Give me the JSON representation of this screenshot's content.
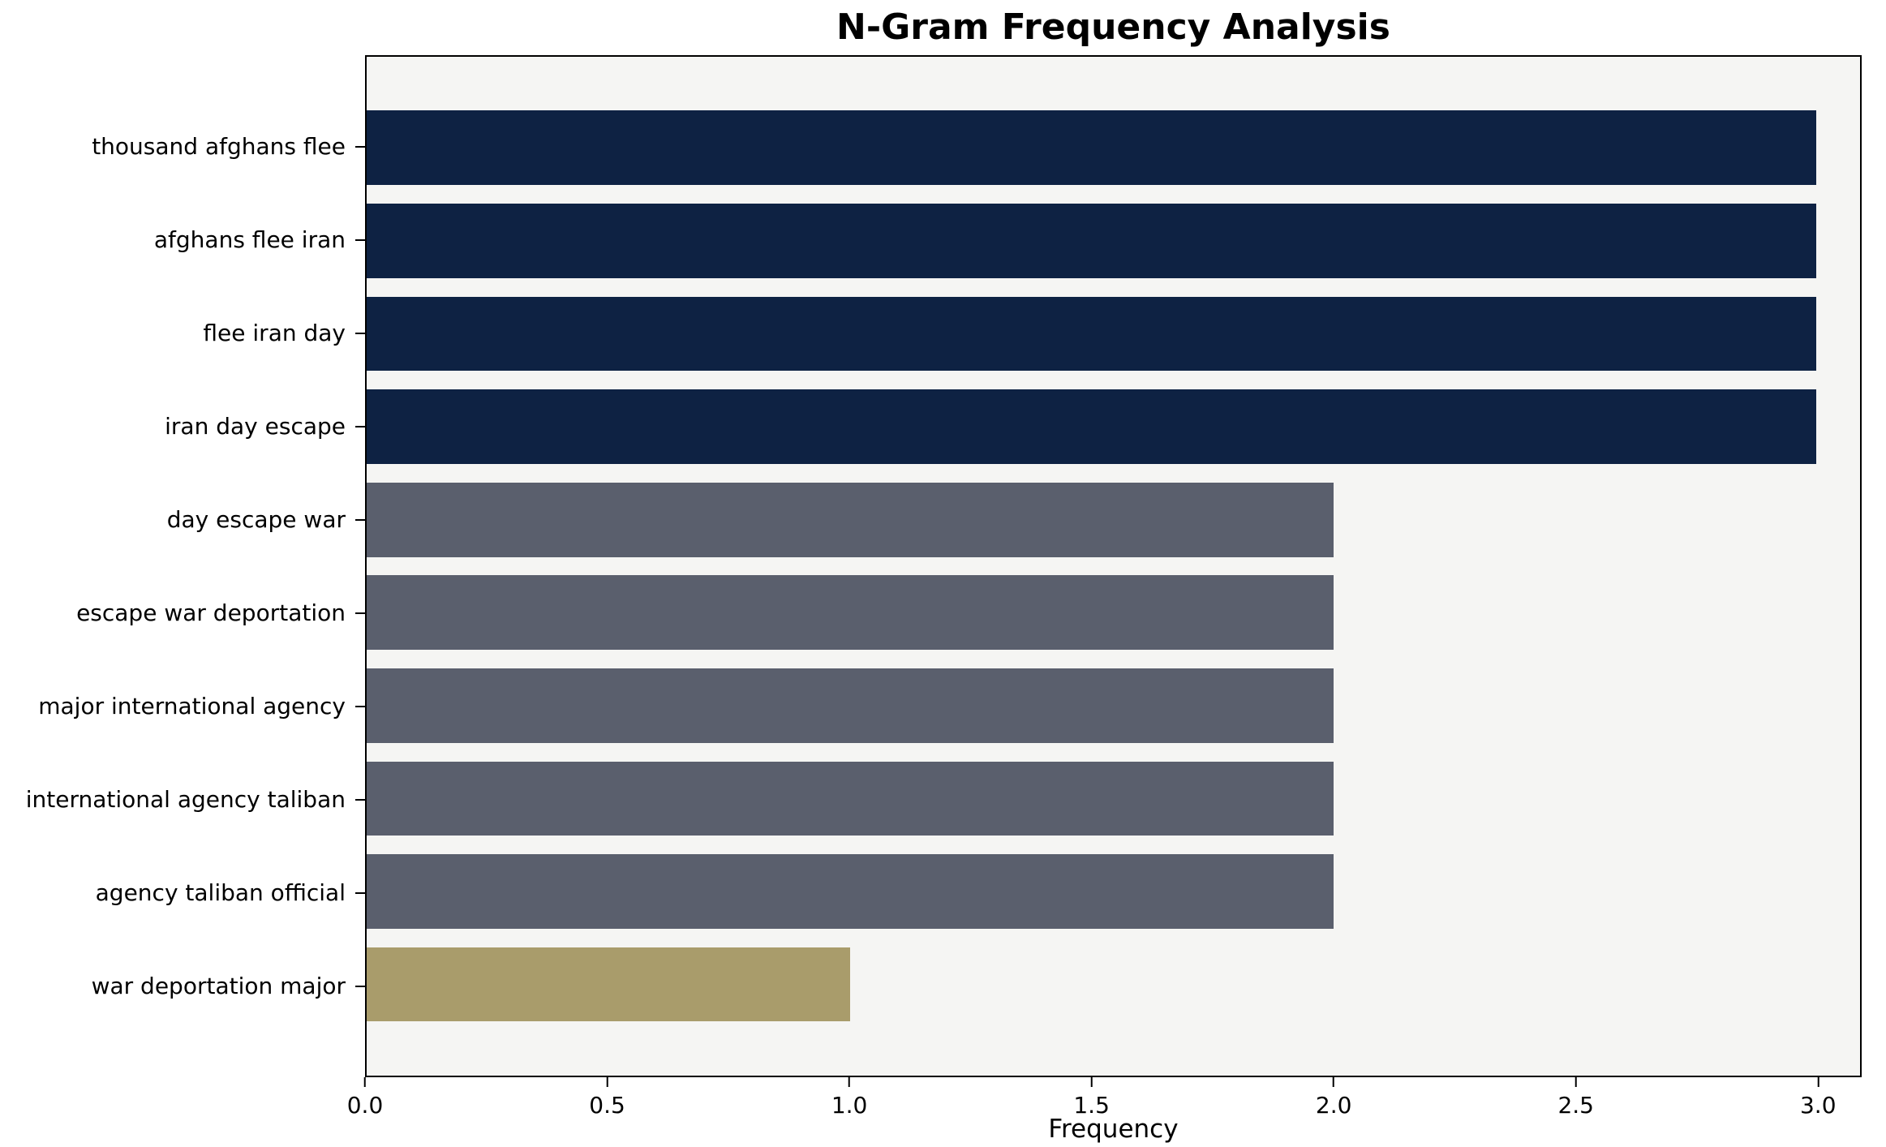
{
  "chart_data": {
    "type": "bar",
    "orientation": "horizontal",
    "title": "N-Gram Frequency Analysis",
    "xlabel": "Frequency",
    "ylabel": "",
    "xlim": [
      0,
      3.09
    ],
    "xticks": [
      0.0,
      0.5,
      1.0,
      1.5,
      2.0,
      2.5,
      3.0
    ],
    "categories": [
      "thousand afghans flee",
      "afghans flee iran",
      "flee iran day",
      "iran day escape",
      "day escape war",
      "escape war deportation",
      "major international agency",
      "international agency taliban",
      "agency taliban official",
      "war deportation major"
    ],
    "values": [
      3,
      3,
      3,
      3,
      2,
      2,
      2,
      2,
      2,
      1
    ],
    "bar_colors": [
      "#0e2243",
      "#0e2243",
      "#0e2243",
      "#0e2243",
      "#5a5f6d",
      "#5a5f6d",
      "#5a5f6d",
      "#5a5f6d",
      "#5a5f6d",
      "#a99c6b"
    ],
    "grid": false,
    "legend": null,
    "plot_background": "#f5f5f3",
    "figure_background": "#ffffff",
    "axis_color": "#000000"
  }
}
